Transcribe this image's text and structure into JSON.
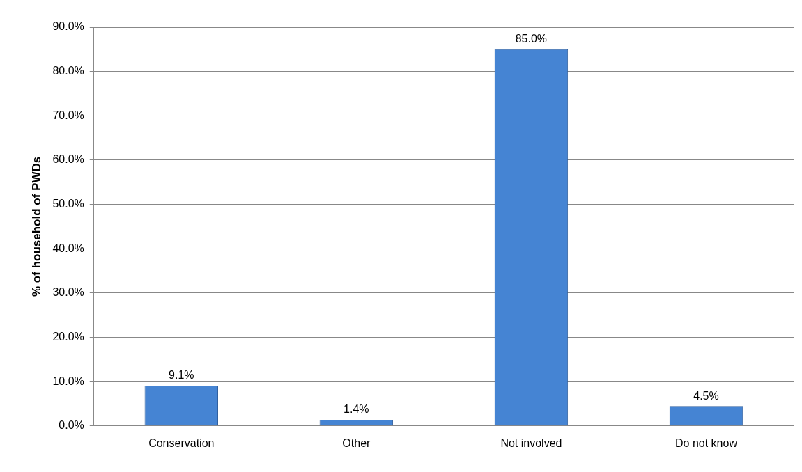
{
  "chart_data": {
    "type": "bar",
    "ylabel": "% of household of PWDs",
    "categories": [
      "Conservation",
      "Other",
      "Not involved",
      "Do not know"
    ],
    "values": [
      9.1,
      1.4,
      85.0,
      4.5
    ],
    "value_labels": [
      "9.1%",
      "1.4%",
      "85.0%",
      "4.5%"
    ],
    "color": "#4584d3",
    "ylim": [
      0,
      90
    ],
    "yticks": [
      {
        "value": 0,
        "label": "0.0%"
      },
      {
        "value": 10,
        "label": "10.0%"
      },
      {
        "value": 20,
        "label": "20.0%"
      },
      {
        "value": 30,
        "label": "30.0%"
      },
      {
        "value": 40,
        "label": "40.0%"
      },
      {
        "value": 50,
        "label": "50.0%"
      },
      {
        "value": 60,
        "label": "60.0%"
      },
      {
        "value": 70,
        "label": "70.0%"
      },
      {
        "value": 80,
        "label": "80.0%"
      },
      {
        "value": 90,
        "label": "90.0%"
      }
    ],
    "grid": "y",
    "legend": false
  }
}
